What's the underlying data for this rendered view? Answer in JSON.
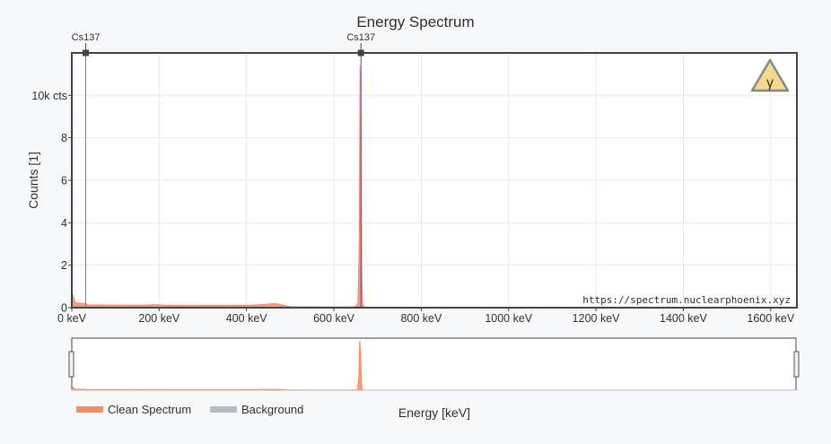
{
  "chart_data": {
    "type": "area",
    "title": "Energy Spectrum",
    "xlabel": "Energy [keV]",
    "ylabel": "Counts [1]",
    "xlim": [
      0,
      1660
    ],
    "ylim": [
      0,
      12000
    ],
    "x_ticks": [
      0,
      200,
      400,
      600,
      800,
      1000,
      1200,
      1400,
      1600
    ],
    "x_tick_labels": [
      "0 keV",
      "200 keV",
      "400 keV",
      "600 keV",
      "800 keV",
      "1000 keV",
      "1200 keV",
      "1400 keV",
      "1600 keV"
    ],
    "y_ticks": [
      0,
      2000,
      4000,
      6000,
      8000,
      10000
    ],
    "y_tick_labels": [
      "0",
      "2",
      "4",
      "6",
      "8",
      "10k cts"
    ],
    "grid": true,
    "legend_position": "bottom-left",
    "series": [
      {
        "name": "Clean Spectrum",
        "color": "#f58b5f",
        "x": [
          0,
          2,
          4,
          6,
          8,
          12,
          20,
          28,
          32,
          36,
          50,
          80,
          120,
          160,
          190,
          200,
          215,
          250,
          300,
          350,
          400,
          440,
          460,
          470,
          480,
          490,
          500,
          540,
          580,
          600,
          620,
          640,
          650,
          655,
          658,
          660,
          662,
          664,
          666,
          670,
          680,
          720,
          800,
          1000,
          1200,
          1400,
          1600,
          1660
        ],
        "y": [
          0,
          650,
          480,
          350,
          280,
          220,
          200,
          200,
          180,
          140,
          130,
          125,
          120,
          115,
          140,
          130,
          115,
          110,
          105,
          105,
          110,
          150,
          190,
          180,
          130,
          80,
          50,
          40,
          35,
          30,
          30,
          40,
          60,
          200,
          3000,
          11400,
          9000,
          1500,
          200,
          20,
          5,
          3,
          2,
          1,
          1,
          1,
          0,
          0
        ]
      },
      {
        "name": "Background",
        "color": "#b4bac6",
        "x": [
          0,
          1660
        ],
        "y": [
          0,
          0
        ]
      }
    ],
    "annotations": [
      {
        "label": "Cs137",
        "energy": 32
      },
      {
        "label": "Cs137",
        "energy": 662
      }
    ],
    "watermark_text": "https://spectrum.nuclearphoenix.xyz",
    "hazard_symbol": "γ"
  },
  "colors": {
    "clean": "#f58b5f",
    "background": "#b4bac6",
    "peak_marker_low": "#7a7a7a",
    "peak_marker_high": "#6b3fa0",
    "plot_bg": "#ffffff",
    "grid": "#e8e8e8",
    "axis": "#444444",
    "hazard_fill": "#f7d98a"
  }
}
